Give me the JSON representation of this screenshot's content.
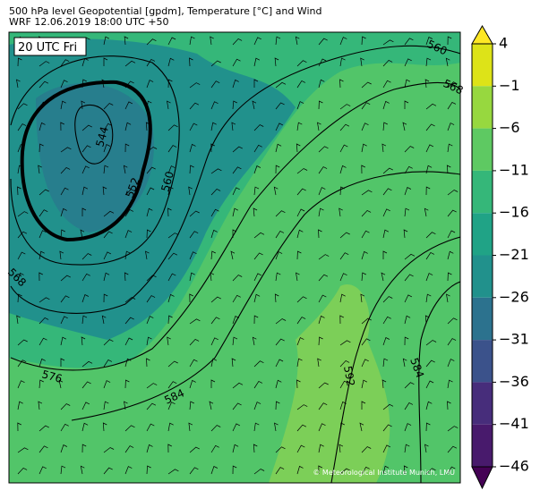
{
  "header": {
    "title": "500 hPa level Geopotential [gpdm], Temperature [°C] and Wind",
    "subtitle": "WRF 12.06.2019 18:00 UTC +50"
  },
  "map": {
    "time_label": "20 UTC Fri",
    "credit": "© Meteorological Institute Munich, LMU",
    "contour_labels": [
      "560",
      "568",
      "544",
      "552",
      "560",
      "568",
      "576",
      "584",
      "592",
      "584"
    ]
  },
  "colorbar": {
    "labels": [
      "4",
      "−1",
      "−6",
      "−11",
      "−16",
      "−21",
      "−26",
      "−31",
      "−36",
      "−41",
      "−46"
    ],
    "colors": [
      "#dde318",
      "#97d83f",
      "#5ec962",
      "#35b779",
      "#20a386",
      "#21918c",
      "#2c728e",
      "#3b528b",
      "#472d7b",
      "#481a6c"
    ],
    "over_color": "#fde725",
    "under_color": "#440154"
  }
}
